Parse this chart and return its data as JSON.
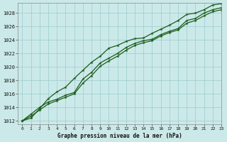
{
  "title": "Graphe pression niveau de la mer (hPa)",
  "xlim": [
    -0.5,
    23
  ],
  "ylim": [
    1011.5,
    1029.5
  ],
  "yticks": [
    1012,
    1014,
    1016,
    1018,
    1020,
    1022,
    1024,
    1026,
    1028
  ],
  "xticks": [
    0,
    1,
    2,
    3,
    4,
    5,
    6,
    7,
    8,
    9,
    10,
    11,
    12,
    13,
    14,
    15,
    16,
    17,
    18,
    19,
    20,
    21,
    22,
    23
  ],
  "bg_color": "#cce9e9",
  "grid_color": "#99cccc",
  "line_color": "#1a5c1a",
  "line1": [
    1012.0,
    1013.0,
    1014.0,
    1014.8,
    1015.2,
    1015.8,
    1016.2,
    1018.2,
    1019.2,
    1020.6,
    1021.3,
    1022.0,
    1022.9,
    1023.5,
    1023.9,
    1024.1,
    1024.8,
    1025.3,
    1025.7,
    1026.9,
    1027.2,
    1028.0,
    1028.5,
    1028.8
  ],
  "line2": [
    1012.0,
    1012.7,
    1013.6,
    1014.5,
    1015.0,
    1015.5,
    1016.0,
    1017.6,
    1018.7,
    1020.1,
    1020.9,
    1021.6,
    1022.5,
    1023.2,
    1023.6,
    1023.9,
    1024.6,
    1025.1,
    1025.5,
    1026.5,
    1026.9,
    1027.6,
    1028.2,
    1028.5
  ],
  "line3": [
    1012.0,
    1012.4,
    1013.8,
    1015.3,
    1016.3,
    1017.0,
    1018.3,
    1019.5,
    1020.7,
    1021.6,
    1022.8,
    1023.2,
    1023.8,
    1024.2,
    1024.3,
    1025.0,
    1025.6,
    1026.2,
    1026.9,
    1027.8,
    1028.0,
    1028.5,
    1029.2,
    1029.4
  ]
}
